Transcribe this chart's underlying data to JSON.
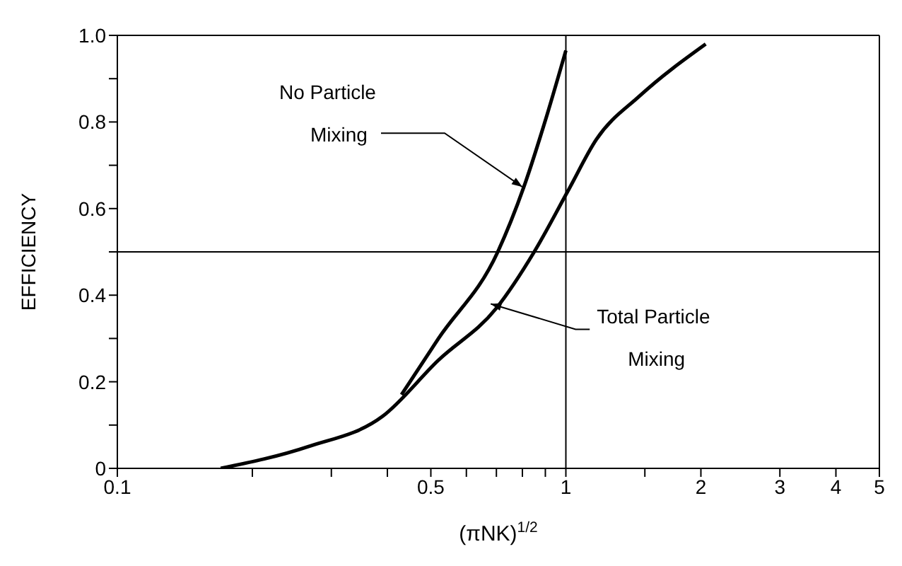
{
  "chart_data": {
    "type": "line",
    "xlabel": "(πNK)$^{1/2}$",
    "ylabel": "EFFICIENCY",
    "log": "x",
    "xlim": [
      0.1,
      5
    ],
    "ylim": [
      0,
      1
    ],
    "xticks": [
      0.1,
      {
        "value": 0.2,
        "label": null
      },
      {
        "value": 0.3,
        "label": null
      },
      {
        "value": 0.4,
        "label": null
      },
      0.5,
      {
        "value": 0.6,
        "label": null
      },
      {
        "value": 0.7,
        "label": null
      },
      {
        "value": 0.8,
        "label": null
      },
      {
        "value": 0.9,
        "label": null
      },
      1,
      {
        "value": 1.5,
        "label": null
      },
      2,
      3,
      4,
      5
    ],
    "yticks": [
      0,
      {
        "value": 0.1,
        "label": null
      },
      0.2,
      {
        "value": 0.3,
        "label": null
      },
      0.4,
      {
        "value": 0.5,
        "label": null
      },
      0.6,
      {
        "value": 0.7,
        "label": null
      },
      0.8,
      {
        "value": 0.9,
        "label": null
      },
      {
        "value": 1,
        "label": "1.0"
      }
    ],
    "marker": "none",
    "line_style": "solid",
    "series": [
      {
        "color": "#000000",
        "x": [
          0.43,
          0.52,
          0.705,
          0.806,
          0.91,
          1.0
        ],
        "values": [
          0.17,
          0.3,
          0.5,
          0.65,
          0.82,
          0.965
        ]
      },
      {
        "color": "#000000",
        "x": [
          0.17,
          0.266,
          0.39,
          0.52,
          0.7,
          0.85,
          1.01,
          1.17,
          1.46,
          2.05
        ],
        "values": [
          0,
          0.05,
          0.12,
          0.25,
          0.37,
          0.5,
          0.64,
          0.76,
          0.86,
          0.98
        ]
      }
    ],
    "ref_lines": [
      {
        "axis": "y",
        "value": 0.5,
        "color": "#000000"
      },
      {
        "axis": "x",
        "value": 1,
        "color": "#000000"
      }
    ],
    "annotations": [
      {
        "text": "No Particle Mixing",
        "x": 0.8,
        "y": 0.65
      },
      {
        "text": "Total Particle Mixing",
        "x": 0.68,
        "y": 0.38
      }
    ]
  }
}
